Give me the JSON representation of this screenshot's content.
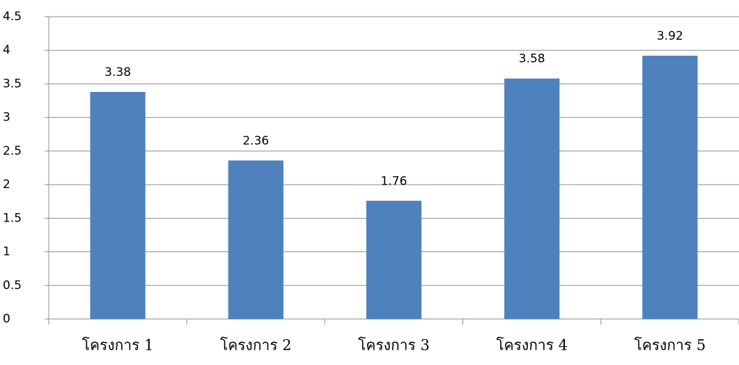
{
  "chart_data": {
    "type": "bar",
    "categories": [
      "โครงการ 1",
      "โครงการ 2",
      "โครงการ 3",
      "โครงการ 4",
      "โครงการ 5"
    ],
    "values": [
      3.38,
      2.36,
      1.76,
      3.58,
      3.92
    ],
    "color": "#4f81bd",
    "ylim": [
      0,
      4.5
    ],
    "yticks": [
      0,
      0.5,
      1,
      1.5,
      2,
      2.5,
      3,
      3.5,
      4,
      4.5
    ],
    "grid": true
  }
}
